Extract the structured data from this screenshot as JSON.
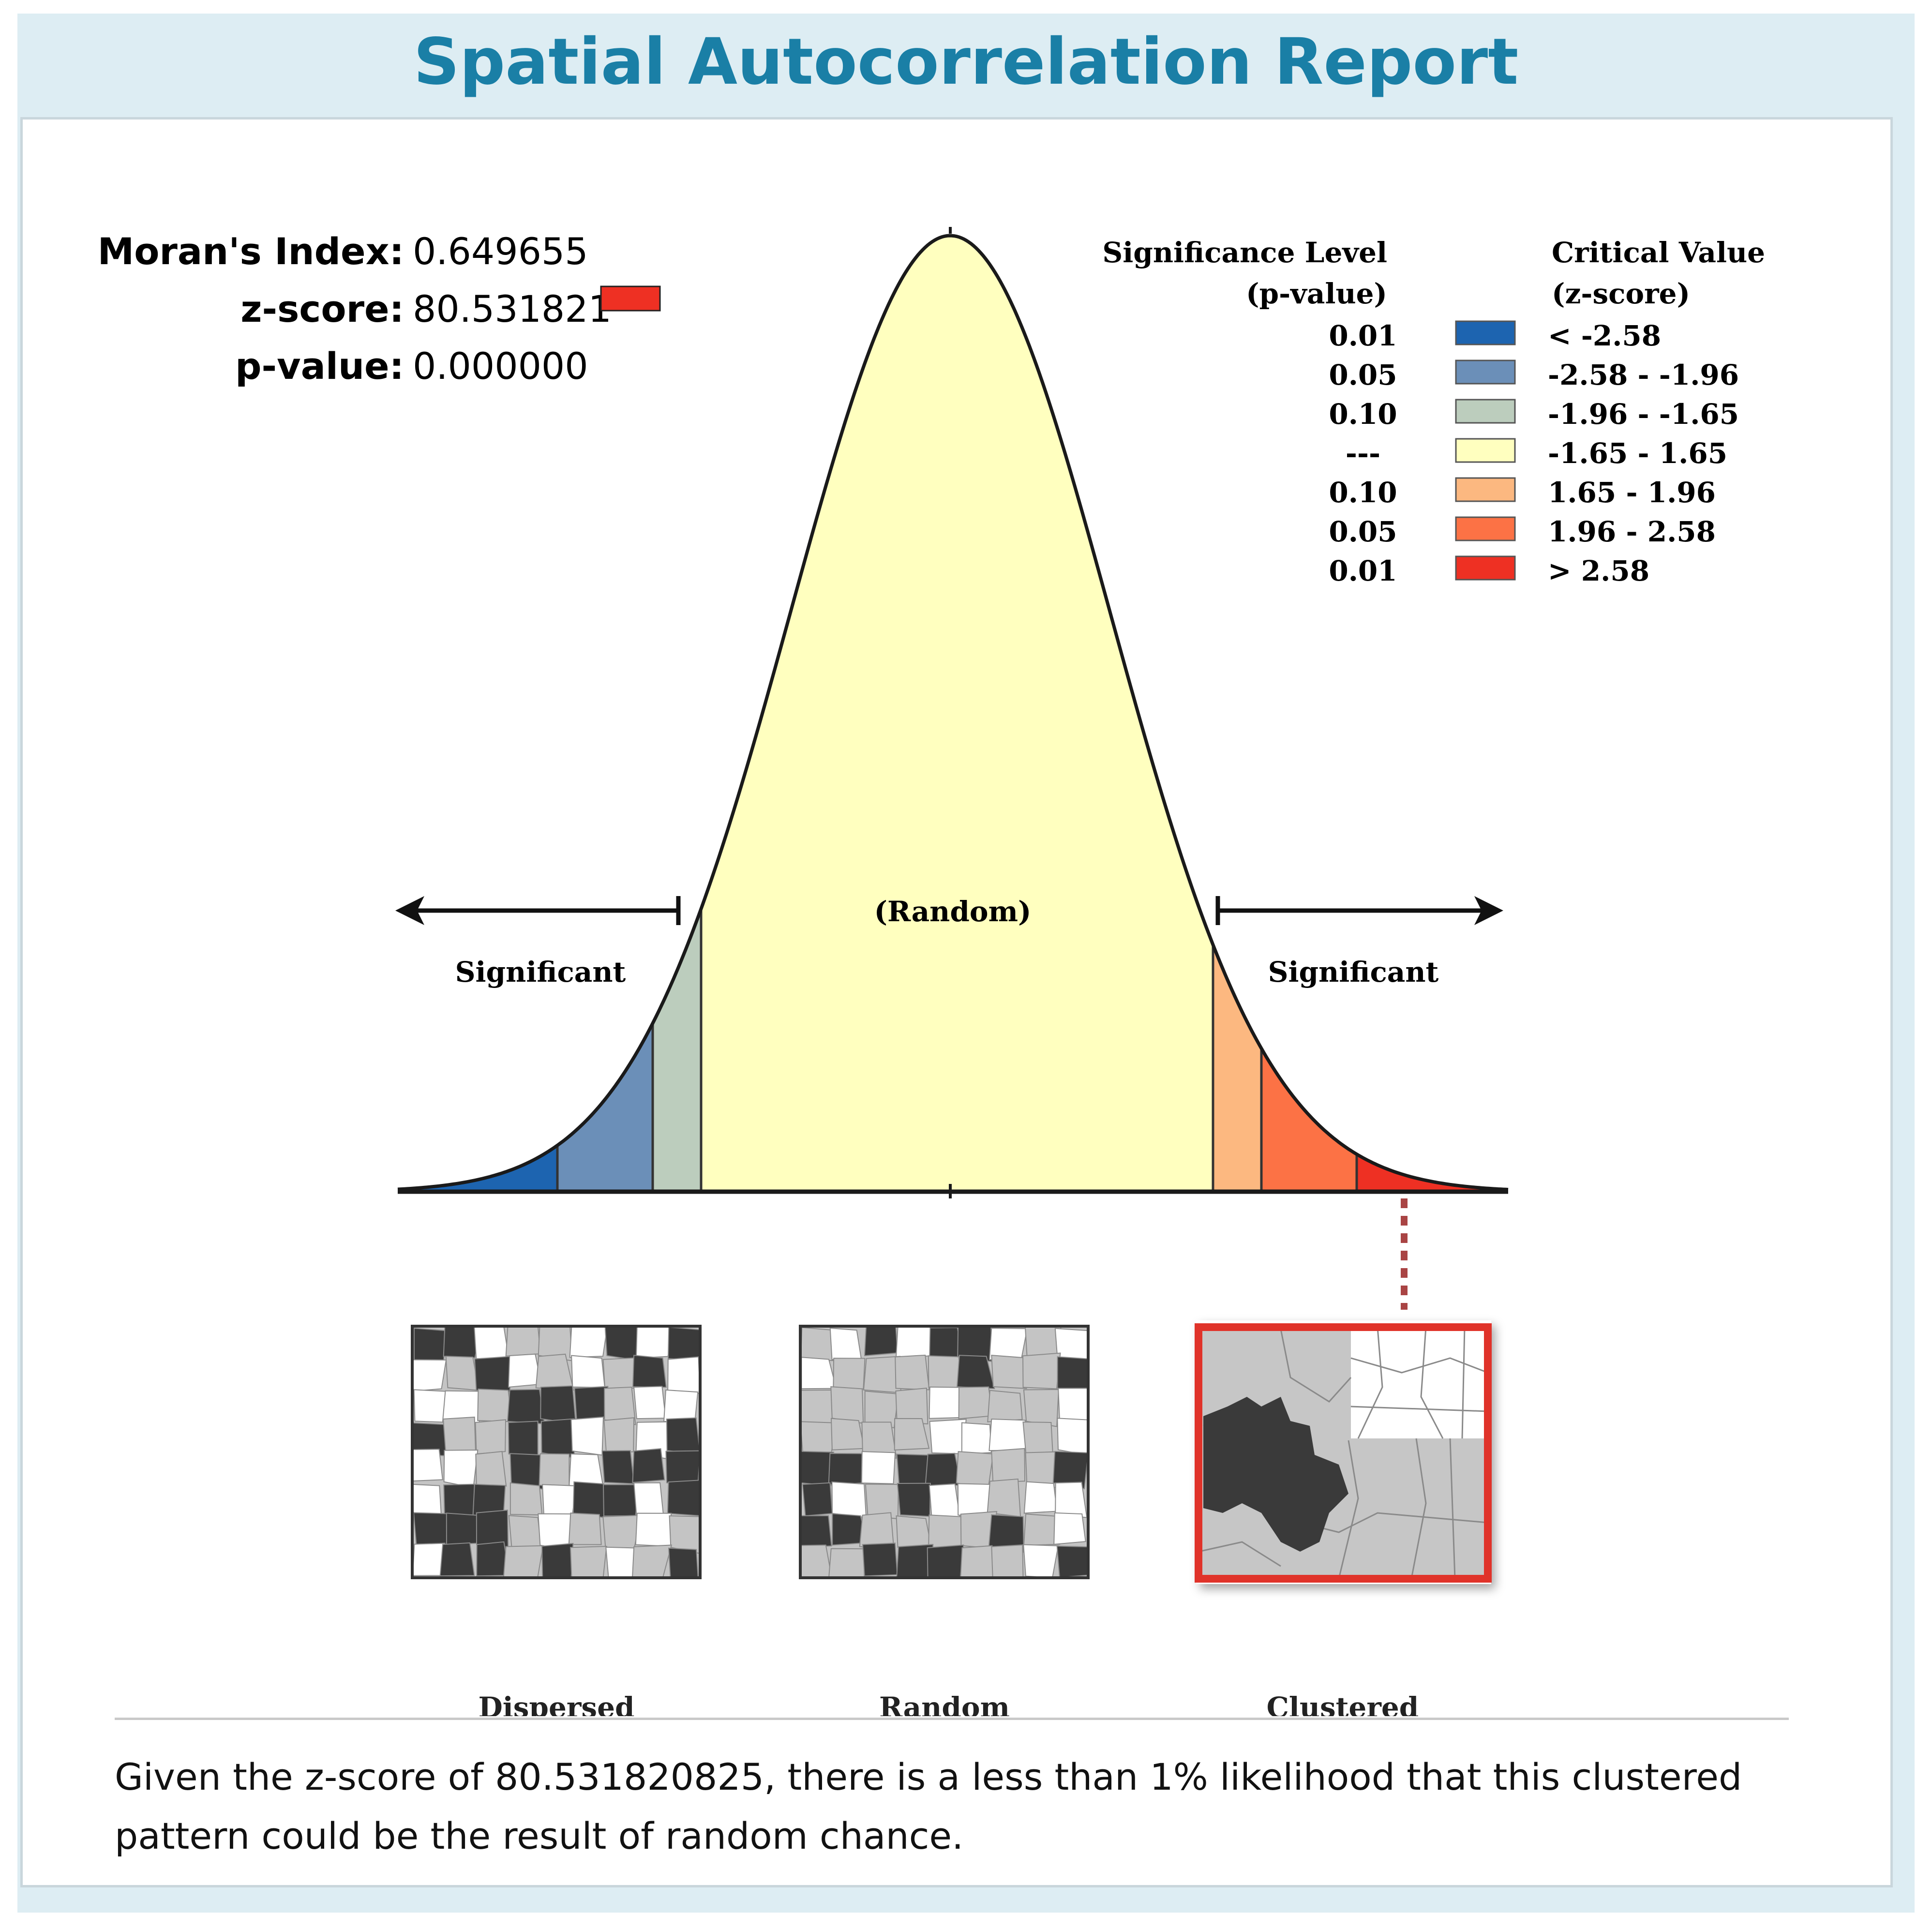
{
  "report": {
    "title": "Spatial Autocorrelation Report"
  },
  "stats": {
    "morans_index": {
      "label": "Moran's Index:",
      "value": "0.649655"
    },
    "z_score": {
      "label": "z-score:",
      "value": "80.531821"
    },
    "p_value": {
      "label": "p-value:",
      "value": "0.000000"
    },
    "z_score_swatch_color": "#ee3023"
  },
  "legend": {
    "significance_header": [
      "Significance Level",
      "(p-value)"
    ],
    "critical_header": [
      "Critical Value",
      "(z-score)"
    ],
    "rows": [
      {
        "p": "0.01",
        "z": "< -2.58",
        "color": "#1d64b0"
      },
      {
        "p": "0.05",
        "z": "-2.58 - -1.96",
        "color": "#6b8fb8"
      },
      {
        "p": "0.10",
        "z": "-1.96 - -1.65",
        "color": "#bccdbd"
      },
      {
        "p": "---",
        "z": "-1.65 - 1.65",
        "color": "#ffffbf"
      },
      {
        "p": "0.10",
        "z": "1.65 - 1.96",
        "color": "#fcb880"
      },
      {
        "p": "0.05",
        "z": "1.96 - 2.58",
        "color": "#fc7245"
      },
      {
        "p": "0.01",
        "z": "> 2.58",
        "color": "#ee3023"
      }
    ]
  },
  "curve": {
    "center_label": "(Random)",
    "left_label": "Significant",
    "right_label": "Significant"
  },
  "patterns": {
    "dispersed": "Dispersed",
    "random": "Random",
    "clustered": "Clustered",
    "highlighted": "Clustered",
    "highlight_color": "#e0332a"
  },
  "conclusion": {
    "line1": "Given the z-score of 80.531820825, there is a less than 1% likelihood that this clustered",
    "line2": "pattern could be the result of random chance."
  }
}
